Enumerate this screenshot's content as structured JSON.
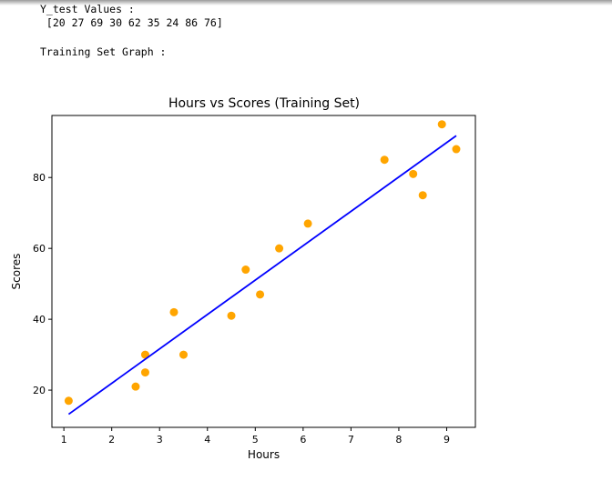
{
  "output": {
    "line1": "Y_test Values :",
    "line2": " [20 27 69 30 62 35 24 86 76]",
    "line3": "Training Set Graph :"
  },
  "chart_data": {
    "type": "scatter",
    "title": "Hours vs Scores (Training Set)",
    "xlabel": "Hours",
    "ylabel": "Scores",
    "xlim": [
      0.75,
      9.6
    ],
    "ylim": [
      9.5,
      97.5
    ],
    "xticks": [
      1,
      2,
      3,
      4,
      5,
      6,
      7,
      8,
      9
    ],
    "yticks": [
      20,
      40,
      60,
      80
    ],
    "grid": false,
    "points": {
      "color": "#ffa500",
      "x": [
        1.1,
        2.5,
        2.7,
        2.7,
        3.3,
        3.5,
        4.5,
        4.8,
        5.1,
        5.5,
        6.1,
        7.7,
        8.3,
        8.5,
        8.9,
        9.2
      ],
      "y": [
        17,
        21,
        25,
        30,
        42,
        30,
        41,
        54,
        47,
        60,
        67,
        85,
        81,
        75,
        95,
        88
      ]
    },
    "fit_line": {
      "color": "#0000ff",
      "x": [
        1.1,
        9.2
      ],
      "y": [
        13.2,
        91.8
      ]
    }
  }
}
